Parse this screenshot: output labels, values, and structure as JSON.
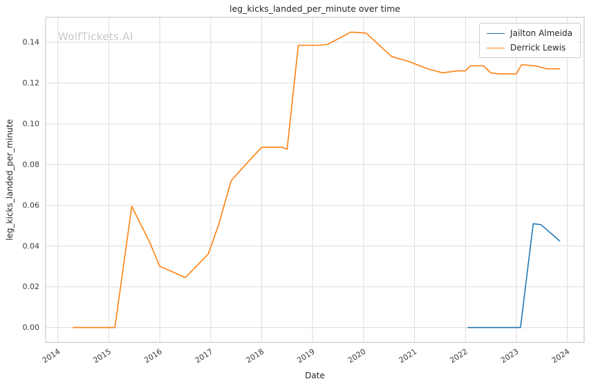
{
  "chart_data": {
    "type": "line",
    "title": "leg_kicks_landed_per_minute over time",
    "xlabel": "Date",
    "ylabel": "leg_kicks_landed_per_minute",
    "watermark": "WolfTickets.AI",
    "grid": true,
    "legend_position": "upper right",
    "xlim": [
      2013.76,
      2024.33
    ],
    "ylim": [
      -0.00725,
      0.15225
    ],
    "x_ticks": [
      2014,
      2015,
      2016,
      2017,
      2018,
      2019,
      2020,
      2021,
      2022,
      2023,
      2024
    ],
    "y_ticks": [
      0.0,
      0.02,
      0.04,
      0.06,
      0.08,
      0.1,
      0.12,
      0.14
    ],
    "series": [
      {
        "name": "Jailton Almeida",
        "color": "#1f77b4",
        "points": [
          [
            2022.05,
            0.0
          ],
          [
            2023.08,
            0.0
          ],
          [
            2023.33,
            0.051
          ],
          [
            2023.48,
            0.0505
          ],
          [
            2023.85,
            0.0425
          ]
        ]
      },
      {
        "name": "Derrick Lewis",
        "color": "#ff7f0e",
        "points": [
          [
            2014.3,
            0.0
          ],
          [
            2014.6,
            0.0
          ],
          [
            2015.05,
            0.0
          ],
          [
            2015.12,
            0.0
          ],
          [
            2015.45,
            0.0595
          ],
          [
            2015.8,
            0.042
          ],
          [
            2016.0,
            0.03
          ],
          [
            2016.15,
            0.0285
          ],
          [
            2016.5,
            0.0245
          ],
          [
            2016.95,
            0.036
          ],
          [
            2017.15,
            0.05
          ],
          [
            2017.4,
            0.072
          ],
          [
            2017.65,
            0.079
          ],
          [
            2018.0,
            0.0885
          ],
          [
            2018.4,
            0.0885
          ],
          [
            2018.5,
            0.0875
          ],
          [
            2018.72,
            0.1385
          ],
          [
            2019.15,
            0.1385
          ],
          [
            2019.3,
            0.139
          ],
          [
            2019.75,
            0.145
          ],
          [
            2020.05,
            0.1445
          ],
          [
            2020.55,
            0.133
          ],
          [
            2020.9,
            0.1305
          ],
          [
            2021.25,
            0.127
          ],
          [
            2021.55,
            0.125
          ],
          [
            2021.85,
            0.126
          ],
          [
            2022.0,
            0.126
          ],
          [
            2022.1,
            0.1285
          ],
          [
            2022.35,
            0.1285
          ],
          [
            2022.5,
            0.125
          ],
          [
            2022.65,
            0.1245
          ],
          [
            2023.0,
            0.1245
          ],
          [
            2023.1,
            0.129
          ],
          [
            2023.35,
            0.1285
          ],
          [
            2023.6,
            0.127
          ],
          [
            2023.85,
            0.127
          ]
        ]
      }
    ],
    "colors": {
      "grid": "#dcdcdc",
      "spine": "#c9c9c9",
      "tick_label": "#3b3b3b"
    }
  }
}
